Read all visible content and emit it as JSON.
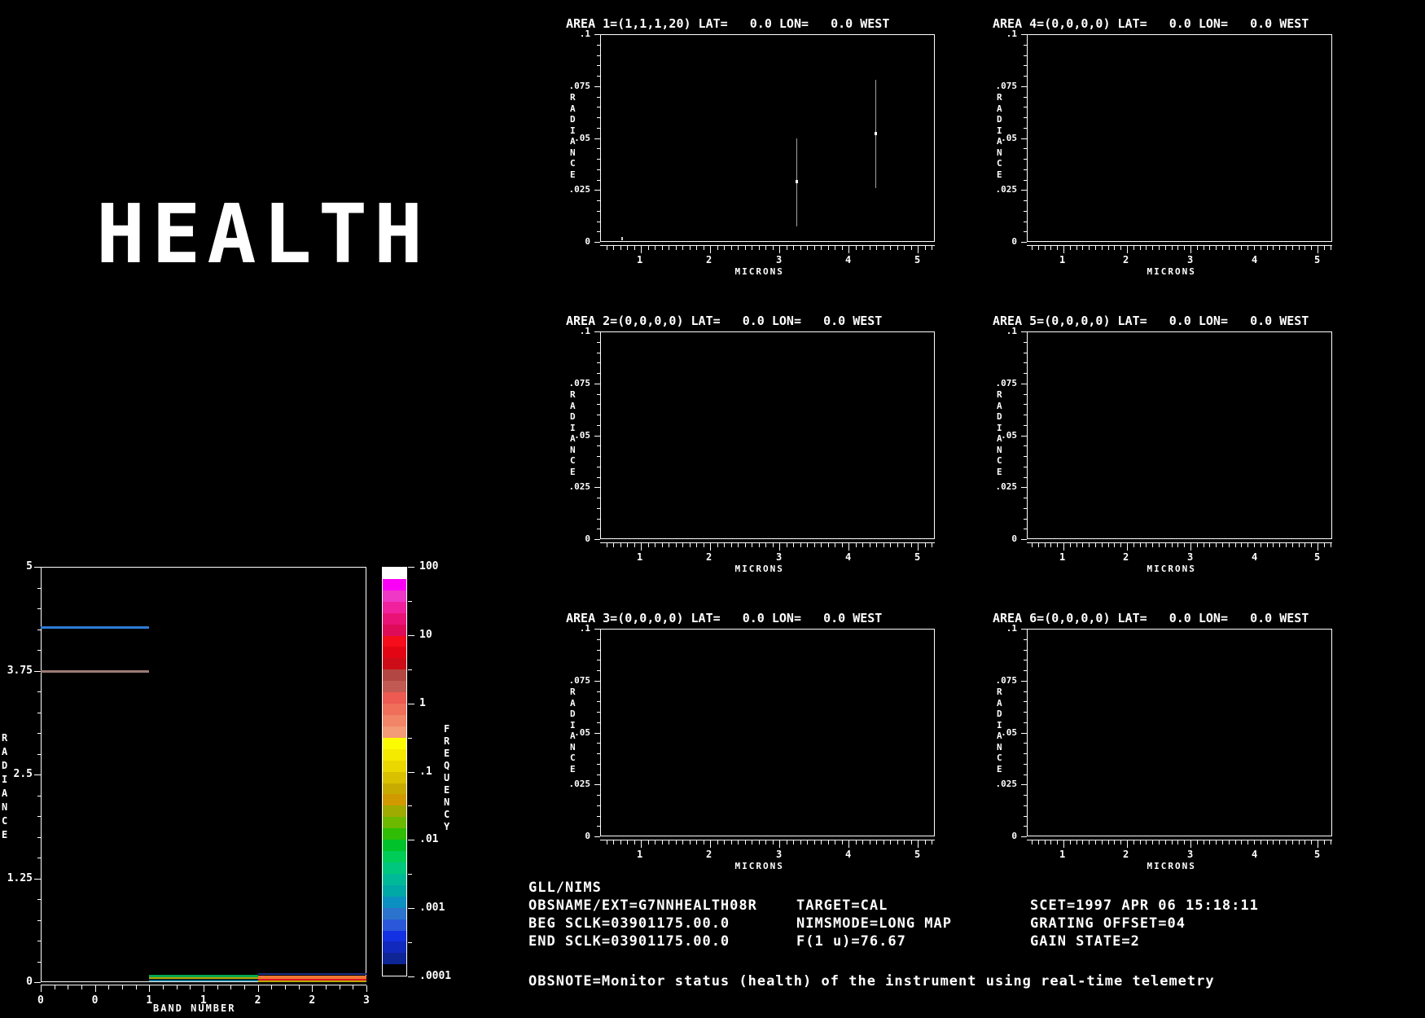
{
  "title": "HEALTH",
  "chart_data": {
    "band_chart": {
      "type": "line",
      "title": "",
      "xlabel": "BAND NUMBER",
      "ylabel": "RADIANCE",
      "xlim": [
        0,
        3
      ],
      "ylim": [
        0,
        5
      ],
      "xtick_labels": [
        "0",
        "0",
        "1",
        "1",
        "2",
        "2",
        "3"
      ],
      "ytick_labels": [
        "5",
        "3.75",
        "2.5",
        "1.25",
        "0"
      ],
      "grid": false,
      "segments": [
        {
          "name": "blue-line",
          "x0": 0,
          "x1": 1,
          "value": 4.27,
          "color": "#2e7bd6",
          "thick": 3
        },
        {
          "name": "mauve-line",
          "x0": 0,
          "x1": 1,
          "value": 3.74,
          "color": "#9d7b76",
          "thick": 3
        },
        {
          "name": "green-line",
          "x0": 1,
          "x1": 2,
          "value": 0.075,
          "color": "#00a84f",
          "thick": 3
        },
        {
          "name": "yellow-line",
          "x0": 1,
          "x1": 2,
          "value": 0.045,
          "color": "#b8a900",
          "thick": 2
        },
        {
          "name": "teal-line",
          "x0": 1,
          "x1": 2,
          "value": 0.02,
          "color": "#0e7490",
          "thick": 2
        },
        {
          "name": "navy-line",
          "x0": 2,
          "x1": 3,
          "value": 0.1,
          "color": "#1e2f85",
          "thick": 2
        },
        {
          "name": "orange-line",
          "x0": 2,
          "x1": 3,
          "value": 0.06,
          "color": "#ef7832",
          "thick": 4
        },
        {
          "name": "red-line",
          "x0": 2,
          "x1": 3,
          "value": 0.025,
          "color": "#de1420",
          "thick": 2
        },
        {
          "name": "yellow-line-2",
          "x0": 2,
          "x1": 3,
          "value": 0.005,
          "color": "#b8a900",
          "thick": 2
        }
      ]
    },
    "colorbar": {
      "label": "FREQUENCY",
      "scale": "log",
      "tick_labels": [
        "100",
        "10",
        "1",
        ".1",
        ".01",
        ".001",
        ".0001"
      ],
      "swatches": [
        "#ffffff",
        "#fb00f7",
        "#ef38c6",
        "#f1219e",
        "#e91377",
        "#de0b59",
        "#f60d1c",
        "#e30513",
        "#cc0d18",
        "#b24643",
        "#c05a52",
        "#ec5a51",
        "#f06f5a",
        "#f28468",
        "#f39a76",
        "#fdfb02",
        "#f4ea00",
        "#ead700",
        "#d9c100",
        "#c7ab00",
        "#d19900",
        "#9fab00",
        "#6db900",
        "#2fbd06",
        "#00c32b",
        "#00cd57",
        "#00c77e",
        "#00ba97",
        "#00a8a6",
        "#0c90c2",
        "#2b73cc",
        "#2b57d9",
        "#1430e3",
        "#1129bd",
        "#0e2596",
        "#010101"
      ]
    },
    "spectra_panels": [
      {
        "id": 1,
        "col": 0,
        "row": 0,
        "title": "AREA 1=(1,1,1,20) LAT=   0.0 LON=   0.0 WEST",
        "xlabel": "MICRONS",
        "ylabel": "RADIANCE",
        "xlim": [
          0.41,
          5.23
        ],
        "ylim": [
          0,
          0.1
        ],
        "xtick_labels": [
          "1",
          "2",
          "3",
          "4",
          "5"
        ],
        "ytick_labels": [
          ".1",
          ".075",
          ".05",
          ".025",
          "0"
        ],
        "spikes": [
          {
            "micron": 3.25,
            "lo": 0.0075,
            "hi": 0.05,
            "center": 0.029
          },
          {
            "micron": 4.39,
            "lo": 0.026,
            "hi": 0.078,
            "center": 0.052
          }
        ],
        "blips": [
          {
            "micron": 0.72,
            "value": 0.001
          }
        ]
      },
      {
        "id": 2,
        "col": 0,
        "row": 1,
        "title": "AREA 2=(0,0,0,0) LAT=   0.0 LON=   0.0 WEST",
        "xlabel": "MICRONS",
        "ylabel": "RADIANCE",
        "xlim": [
          0.41,
          5.23
        ],
        "ylim": [
          0,
          0.1
        ],
        "xtick_labels": [
          "1",
          "2",
          "3",
          "4",
          "5"
        ],
        "ytick_labels": [
          ".1",
          ".075",
          ".05",
          ".025",
          "0"
        ],
        "spikes": [],
        "blips": []
      },
      {
        "id": 3,
        "col": 0,
        "row": 2,
        "title": "AREA 3=(0,0,0,0) LAT=   0.0 LON=   0.0 WEST",
        "xlabel": "MICRONS",
        "ylabel": "RADIANCE",
        "xlim": [
          0.41,
          5.23
        ],
        "ylim": [
          0,
          0.1
        ],
        "xtick_labels": [
          "1",
          "2",
          "3",
          "4",
          "5"
        ],
        "ytick_labels": [
          ".1",
          ".075",
          ".05",
          ".025",
          "0"
        ],
        "spikes": [],
        "blips": []
      },
      {
        "id": 4,
        "col": 1,
        "row": 0,
        "title": "AREA 4=(0,0,0,0) LAT=   0.0 LON=   0.0 WEST",
        "xlabel": "MICRONS",
        "ylabel": "RADIANCE",
        "xlim": [
          0.41,
          5.23
        ],
        "ylim": [
          0,
          0.1
        ],
        "xtick_labels": [
          "1",
          "2",
          "3",
          "4",
          "5"
        ],
        "ytick_labels": [
          ".1",
          ".075",
          ".05",
          ".025",
          "0"
        ],
        "spikes": [],
        "blips": []
      },
      {
        "id": 5,
        "col": 1,
        "row": 1,
        "title": "AREA 5=(0,0,0,0) LAT=   0.0 LON=   0.0 WEST",
        "xlabel": "MICRONS",
        "ylabel": "RADIANCE",
        "xlim": [
          0.41,
          5.23
        ],
        "ylim": [
          0,
          0.1
        ],
        "xtick_labels": [
          "1",
          "2",
          "3",
          "4",
          "5"
        ],
        "ytick_labels": [
          ".1",
          ".075",
          ".05",
          ".025",
          "0"
        ],
        "spikes": [],
        "blips": []
      },
      {
        "id": 6,
        "col": 1,
        "row": 2,
        "title": "AREA 6=(0,0,0,0) LAT=   0.0 LON=   0.0 WEST",
        "xlabel": "MICRONS",
        "ylabel": "RADIANCE",
        "xlim": [
          0.41,
          5.23
        ],
        "ylim": [
          0,
          0.1
        ],
        "xtick_labels": [
          "1",
          "2",
          "3",
          "4",
          "5"
        ],
        "ytick_labels": [
          ".1",
          ".075",
          ".05",
          ".025",
          "0"
        ],
        "spikes": [],
        "blips": []
      }
    ]
  },
  "footer": {
    "project": "GLL/NIMS",
    "rows": [
      [
        "OBSNAME/EXT=G7NNHEALTH08R",
        "TARGET=CAL",
        "SCET=1997 APR 06 15:18:11"
      ],
      [
        "BEG SCLK=03901175.00.0",
        "NIMSMODE=LONG MAP",
        "GRATING OFFSET=04"
      ],
      [
        "END SCLK=03901175.00.0",
        "F(1 u)=76.67",
        "GAIN STATE=2"
      ]
    ],
    "note": "OBSNOTE=Monitor status (health) of the instrument using real-time telemetry"
  }
}
